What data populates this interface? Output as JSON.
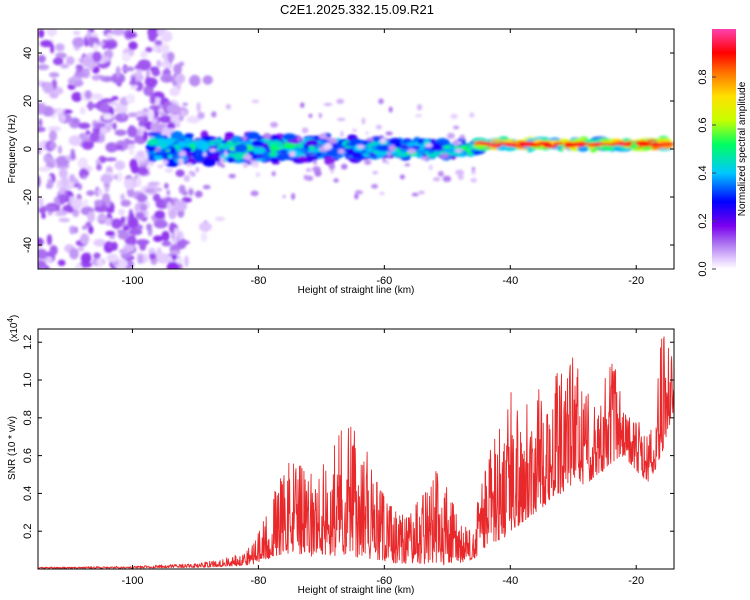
{
  "chart_data": [
    {
      "type": "heatmap",
      "title": "C2E1.2025.332.15.09.R21",
      "xlabel": "Height of straight line (km)",
      "ylabel": "Frequency (Hz)",
      "xlim": [
        -115,
        -14
      ],
      "ylim": [
        -50,
        50
      ],
      "x_ticks": [
        -100,
        -80,
        -60,
        -40,
        -20
      ],
      "y_ticks": [
        -40,
        -20,
        0,
        20,
        40
      ],
      "colorbar": {
        "label": "Normalized spectral amplitude",
        "range": [
          0,
          1
        ],
        "ticks": [
          0.0,
          0.2,
          0.4,
          0.6,
          0.8
        ],
        "tick_labels": [
          "0.0",
          "0.2",
          "0.4",
          "0.6",
          "0.8"
        ]
      },
      "features": [
        {
          "x_range": [
            -115,
            -92
          ],
          "freq_range": [
            -50,
            50
          ],
          "amplitude": 0.1,
          "pattern": "scattered"
        },
        {
          "x_range": [
            -97,
            -45
          ],
          "center_freq": 0,
          "amplitude": 0.35,
          "pattern": "band"
        },
        {
          "x_range": [
            -45,
            -15
          ],
          "center_freq": 2,
          "amplitude": 0.8,
          "pattern": "narrow-band"
        }
      ]
    },
    {
      "type": "line",
      "xlabel": "Height of straight line (km)",
      "ylabel": "SNR (10 * v/v)",
      "multiplier_label": "(x10",
      "multiplier_exp": "4",
      "multiplier_close": ")",
      "xlim": [
        -115,
        -14
      ],
      "ylim": [
        0,
        1.27
      ],
      "x_ticks": [
        -100,
        -80,
        -60,
        -40,
        -20
      ],
      "y_ticks": [
        0.2,
        0.4,
        0.6,
        0.8,
        1.0,
        1.2
      ],
      "y_tick_labels": [
        "0.2",
        "0.4",
        "0.6",
        "0.8",
        "1.0",
        "1.2"
      ],
      "color": "#e8282a",
      "envelope": {
        "x": [
          -115,
          -100,
          -90,
          -86,
          -82,
          -80,
          -78,
          -76,
          -74,
          -72,
          -70,
          -68,
          -66,
          -64,
          -62,
          -60,
          -58,
          -56,
          -54,
          -52,
          -50,
          -48,
          -46,
          -44,
          -42,
          -40,
          -38,
          -36,
          -34,
          -32,
          -30,
          -28,
          -26,
          -24,
          -22,
          -20,
          -18,
          -16,
          -14
        ],
        "low": [
          0.003,
          0.005,
          0.008,
          0.012,
          0.02,
          0.03,
          0.06,
          0.08,
          0.08,
          0.06,
          0.08,
          0.07,
          0.08,
          0.06,
          0.05,
          0.04,
          0.03,
          0.03,
          0.03,
          0.02,
          0.02,
          0.03,
          0.05,
          0.1,
          0.15,
          0.18,
          0.25,
          0.3,
          0.35,
          0.4,
          0.45,
          0.45,
          0.5,
          0.55,
          0.6,
          0.52,
          0.45,
          0.6,
          0.85
        ],
        "high": [
          0.01,
          0.015,
          0.03,
          0.05,
          0.1,
          0.2,
          0.35,
          0.55,
          0.6,
          0.5,
          0.55,
          0.7,
          0.85,
          0.75,
          0.55,
          0.4,
          0.3,
          0.3,
          0.4,
          0.6,
          0.45,
          0.25,
          0.2,
          0.6,
          0.75,
          0.95,
          0.9,
          0.95,
          1.0,
          1.05,
          1.15,
          0.95,
          0.9,
          1.2,
          0.85,
          0.8,
          0.7,
          1.25,
          1.15
        ]
      },
      "sample_count": 1600
    }
  ]
}
